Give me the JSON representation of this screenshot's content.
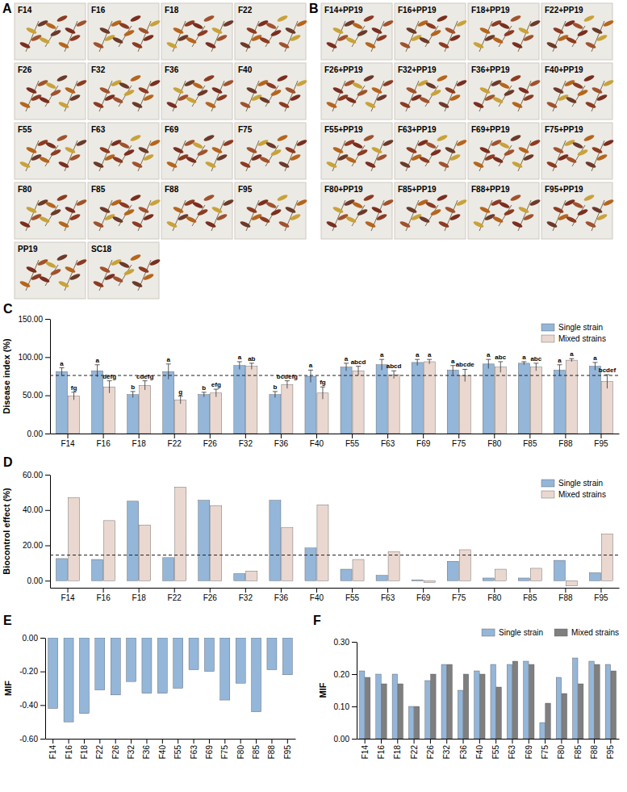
{
  "photo_panels": [
    {
      "letter": "A",
      "labels": [
        "F14",
        "F16",
        "F18",
        "F22",
        "F26",
        "F32",
        "F36",
        "F40",
        "F55",
        "F63",
        "F69",
        "F75",
        "F80",
        "F85",
        "F88",
        "F95",
        "PP19",
        "SC18"
      ]
    },
    {
      "letter": "B",
      "labels": [
        "F14+PP19",
        "F16+PP19",
        "F18+PP19",
        "F22+PP19",
        "F26+PP19",
        "F32+PP19",
        "F36+PP19",
        "F40+PP19",
        "F55+PP19",
        "F63+PP19",
        "F69+PP19",
        "F75+PP19",
        "F80+PP19",
        "F85+PP19",
        "F88+PP19",
        "F95+PP19"
      ]
    }
  ],
  "chart_data": [
    {
      "panel_letter": "C",
      "type": "bar",
      "y_label": "Disease index (%)",
      "categories": [
        "F14",
        "F16",
        "F18",
        "F22",
        "F26",
        "F32",
        "F36",
        "F40",
        "F55",
        "F63",
        "F69",
        "F75",
        "F80",
        "F85",
        "F88",
        "F95"
      ],
      "series": [
        {
          "name": "Single strain",
          "color": "#94b6d9",
          "values": [
            81,
            82,
            51,
            81,
            51,
            89,
            51,
            75,
            87,
            90,
            93,
            83,
            91,
            92,
            83,
            88
          ],
          "errors": [
            5,
            8,
            4,
            10,
            3,
            5,
            4,
            8,
            5,
            7,
            4,
            6,
            6,
            2,
            7,
            5
          ],
          "letters": [
            "a",
            "a",
            "b",
            "a",
            "b",
            "a",
            "b",
            "a",
            "a",
            "a",
            "a",
            "a",
            "a",
            "a",
            "a",
            "a"
          ]
        },
        {
          "name": "Mixed strains",
          "color": "#ead8d0",
          "values": [
            49,
            61,
            63,
            44,
            53,
            88,
            64,
            53,
            82,
            77,
            94,
            76,
            87,
            87,
            96,
            68
          ],
          "errors": [
            5,
            8,
            6,
            5,
            5,
            4,
            5,
            8,
            6,
            5,
            3,
            8,
            7,
            5,
            2,
            9
          ],
          "letters": [
            "fg",
            "defg",
            "cdefg",
            "g",
            "efg",
            "ab",
            "bcdefg",
            "fg",
            "abcd",
            "abcd",
            "a",
            "abcde",
            "abc",
            "abc",
            "a",
            "bcdef"
          ]
        }
      ],
      "ylim": [
        0,
        150
      ],
      "yticks": [
        {
          "value": 0,
          "label": "0.00"
        },
        {
          "value": 50,
          "label": "50.00"
        },
        {
          "value": 100,
          "label": "100.00"
        },
        {
          "value": 150,
          "label": "150.00"
        }
      ],
      "reference_line": 76,
      "legend": "top-right"
    },
    {
      "panel_letter": "D",
      "type": "bar",
      "y_label": "Biocontrol effect (%)",
      "categories": [
        "F14",
        "F16",
        "F18",
        "F22",
        "F26",
        "F32",
        "F36",
        "F40",
        "F55",
        "F63",
        "F69",
        "F75",
        "F80",
        "F85",
        "F88",
        "F95"
      ],
      "series": [
        {
          "name": "Single strain",
          "color": "#94b6d9",
          "values": [
            12.5,
            12,
            45,
            13,
            45.5,
            4,
            45.5,
            18.5,
            6.5,
            3,
            0.5,
            11,
            1.5,
            1.5,
            11.5,
            4.5
          ]
        },
        {
          "name": "Mixed strains",
          "color": "#ead8d0",
          "values": [
            47,
            34,
            31.5,
            53,
            42.5,
            5.5,
            30,
            43,
            12,
            16.5,
            -1,
            17.5,
            6.5,
            7,
            -3,
            26.5
          ]
        }
      ],
      "ylim": [
        -4,
        60
      ],
      "yticks": [
        {
          "value": 0,
          "label": "0.00"
        },
        {
          "value": 20,
          "label": "20.00"
        },
        {
          "value": 40,
          "label": "40.00"
        },
        {
          "value": 60,
          "label": "60.00"
        }
      ],
      "reference_line": 14.5,
      "legend": "top-right"
    },
    {
      "panel_letter": "E",
      "type": "bar",
      "y_label": "MIF",
      "categories": [
        "F14",
        "F16",
        "F18",
        "F22",
        "F26",
        "F32",
        "F36",
        "F40",
        "F55",
        "F63",
        "F69",
        "F75",
        "F80",
        "F85",
        "F88",
        "F95"
      ],
      "values": [
        -0.42,
        -0.5,
        -0.45,
        -0.31,
        -0.34,
        -0.26,
        -0.33,
        -0.33,
        -0.3,
        -0.19,
        -0.2,
        -0.37,
        -0.27,
        -0.44,
        -0.19,
        -0.22
      ],
      "color": "#94b6d9",
      "ylim": [
        -0.6,
        0
      ],
      "yticks": [
        {
          "value": -0.6,
          "label": "-0.60"
        },
        {
          "value": -0.4,
          "label": "-0.40"
        },
        {
          "value": -0.2,
          "label": "-0.20"
        },
        {
          "value": 0,
          "label": "0.00"
        }
      ]
    },
    {
      "panel_letter": "F",
      "type": "bar",
      "y_label": "MIF",
      "categories": [
        "F14",
        "F16",
        "F18",
        "F22",
        "F26",
        "F32",
        "F36",
        "F40",
        "F55",
        "F63",
        "F69",
        "F75",
        "F80",
        "F85",
        "F88",
        "F95"
      ],
      "series": [
        {
          "name": "Single strain",
          "color": "#94b6d9",
          "values": [
            0.21,
            0.2,
            0.2,
            0.1,
            0.18,
            0.23,
            0.15,
            0.21,
            0.23,
            0.23,
            0.24,
            0.05,
            0.19,
            0.25,
            0.24,
            0.23
          ]
        },
        {
          "name": "Mixed strains",
          "color": "#7f7f7f",
          "values": [
            0.19,
            0.17,
            0.17,
            0.1,
            0.2,
            0.23,
            0.2,
            0.2,
            0.16,
            0.24,
            0.23,
            0.11,
            0.14,
            0.17,
            0.23,
            0.21
          ]
        }
      ],
      "ylim": [
        0,
        0.3
      ],
      "yticks": [
        {
          "value": 0,
          "label": "0.00"
        },
        {
          "value": 0.1,
          "label": "0.10"
        },
        {
          "value": 0.2,
          "label": "0.20"
        },
        {
          "value": 0.3,
          "label": "0.30"
        }
      ],
      "legend": "top"
    }
  ]
}
